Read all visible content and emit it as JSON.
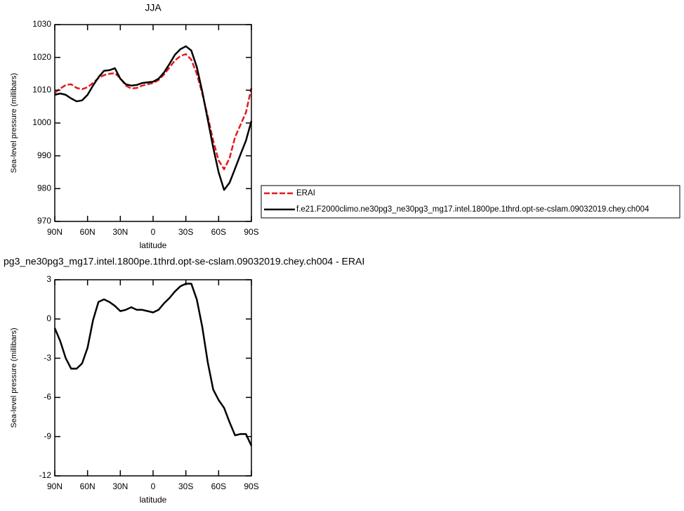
{
  "chart_data": [
    {
      "type": "line",
      "title": "JJA",
      "xlabel": "latitude",
      "ylabel": "Sea-level pressure (millibars)",
      "x": [
        90,
        85,
        80,
        75,
        70,
        65,
        60,
        55,
        50,
        45,
        40,
        35,
        30,
        25,
        20,
        15,
        10,
        5,
        0,
        -5,
        -10,
        -15,
        -20,
        -25,
        -30,
        -35,
        -40,
        -45,
        -50,
        -55,
        -60,
        -65,
        -70,
        -75,
        -80,
        -85,
        -90
      ],
      "xlim": [
        90,
        -90
      ],
      "xticks": [
        {
          "value": 90,
          "label": "90N"
        },
        {
          "value": 60,
          "label": "60N"
        },
        {
          "value": 30,
          "label": "30N"
        },
        0,
        {
          "value": -30,
          "label": "30S"
        },
        {
          "value": -60,
          "label": "60S"
        },
        {
          "value": -90,
          "label": "90S"
        }
      ],
      "ylim": [
        970,
        1030
      ],
      "yticks": [
        970,
        980,
        990,
        1000,
        1010,
        1020,
        1030
      ],
      "legend": "right",
      "series": [
        {
          "name": "ERAI",
          "color": "#e41a1c",
          "line_style": "dashed",
          "values": [
            1009.2,
            1010.5,
            1011.6,
            1011.8,
            1010.7,
            1010.3,
            1010.9,
            1012.2,
            1013.7,
            1014.6,
            1015.0,
            1015.2,
            1013.7,
            1011.4,
            1010.5,
            1010.7,
            1011.4,
            1011.8,
            1012.2,
            1013.1,
            1014.8,
            1016.9,
            1019.1,
            1020.4,
            1021.0,
            1019.3,
            1015.0,
            1009.0,
            1002.1,
            994.6,
            988.6,
            985.9,
            989.3,
            995.7,
            999.4,
            1003.2,
            1010.7
          ]
        },
        {
          "name": "f.e21.F2000climo.ne30pg3_ne30pg3_mg17.intel.1800pe.1thrd.opt-se-cslam.09032019.chey.ch004",
          "color": "#000000",
          "line_style": "solid",
          "values": [
            1008.6,
            1009.0,
            1008.6,
            1007.5,
            1006.6,
            1006.9,
            1008.6,
            1011.4,
            1013.9,
            1015.9,
            1016.1,
            1016.7,
            1013.5,
            1011.8,
            1011.4,
            1011.6,
            1012.2,
            1012.4,
            1012.6,
            1013.5,
            1015.4,
            1018.0,
            1020.8,
            1022.5,
            1023.4,
            1022.1,
            1017.1,
            1009.6,
            1001.1,
            992.5,
            985.0,
            979.6,
            981.8,
            986.1,
            990.4,
            994.6,
            1000.6
          ]
        }
      ]
    },
    {
      "type": "line",
      "title": "pg3_ne30pg3_mg17.intel.1800pe.1thrd.opt-se-cslam.09032019.chey.ch004 - ERAI",
      "xlabel": "latitude",
      "ylabel": "Sea-level pressure (millibars)",
      "x": [
        90,
        85,
        80,
        75,
        70,
        65,
        60,
        55,
        50,
        45,
        40,
        35,
        30,
        25,
        20,
        15,
        10,
        5,
        0,
        -5,
        -10,
        -15,
        -20,
        -25,
        -30,
        -35,
        -40,
        -45,
        -50,
        -55,
        -60,
        -65,
        -70,
        -75,
        -80,
        -85,
        -90
      ],
      "xlim": [
        90,
        -90
      ],
      "xticks": [
        {
          "value": 90,
          "label": "90N"
        },
        {
          "value": 60,
          "label": "60N"
        },
        {
          "value": 30,
          "label": "30N"
        },
        0,
        {
          "value": -30,
          "label": "30S"
        },
        {
          "value": -60,
          "label": "60S"
        },
        {
          "value": -90,
          "label": "90S"
        }
      ],
      "ylim": [
        -12,
        3
      ],
      "yticks": [
        -12,
        -9,
        -6,
        -3,
        0,
        3
      ],
      "series": [
        {
          "color": "#000000",
          "line_style": "solid",
          "values": [
            -0.7,
            -1.7,
            -3.0,
            -3.8,
            -3.8,
            -3.4,
            -2.2,
            -0.1,
            1.3,
            1.5,
            1.3,
            1.0,
            0.6,
            0.7,
            0.9,
            0.7,
            0.7,
            0.6,
            0.5,
            0.7,
            1.2,
            1.6,
            2.1,
            2.5,
            2.7,
            2.7,
            1.5,
            -0.6,
            -3.3,
            -5.4,
            -6.2,
            -6.8,
            -7.9,
            -8.9,
            -8.8,
            -8.8,
            -9.7
          ]
        }
      ]
    }
  ]
}
